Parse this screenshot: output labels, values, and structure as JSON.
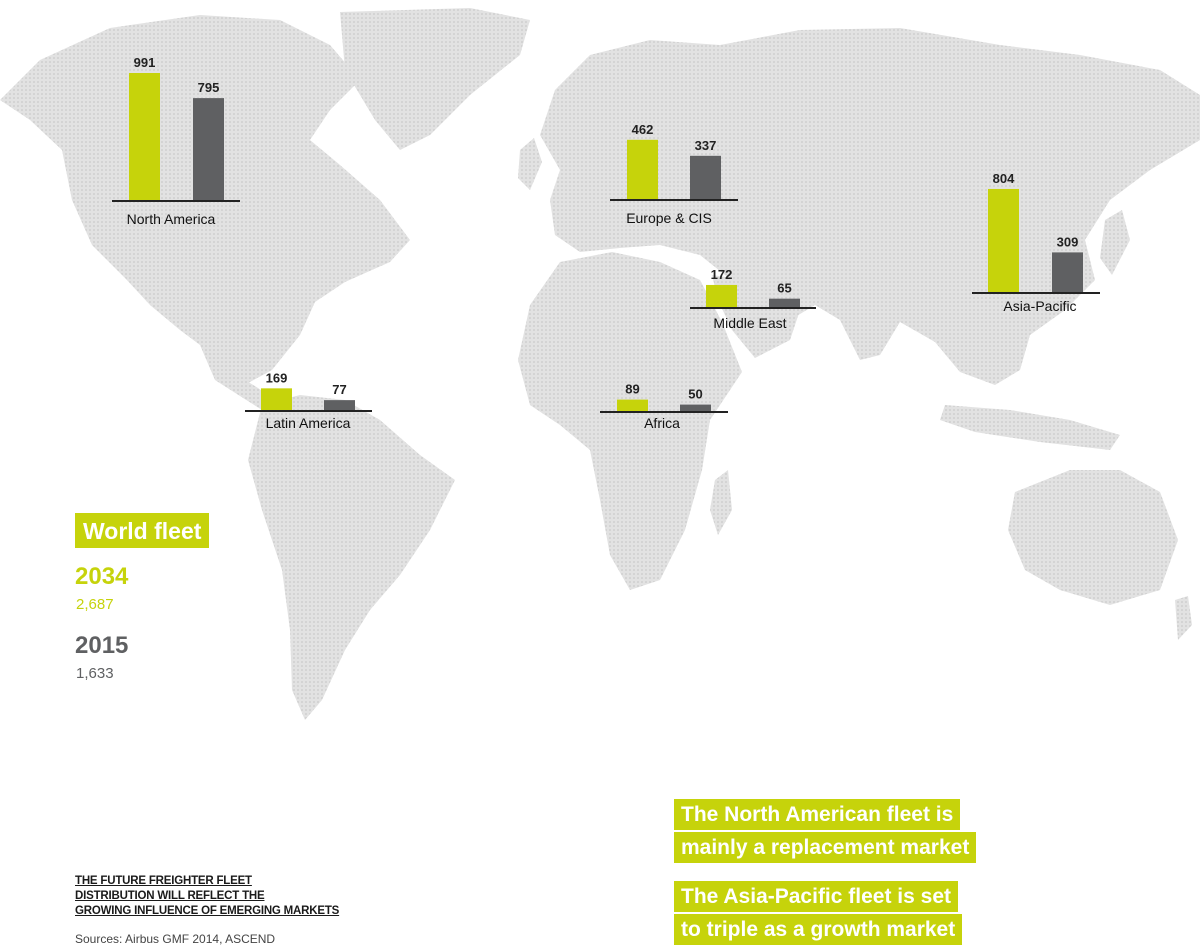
{
  "chart_data": {
    "type": "bar",
    "series": [
      {
        "name": "2034",
        "color": "#c6d30b"
      },
      {
        "name": "2015",
        "color": "#5f6062"
      }
    ],
    "regions": [
      {
        "name": "North America",
        "values": [
          991,
          795
        ]
      },
      {
        "name": "Europe & CIS",
        "values": [
          462,
          337
        ]
      },
      {
        "name": "Asia-Pacific",
        "values": [
          804,
          309
        ]
      },
      {
        "name": "Middle East",
        "values": [
          172,
          65
        ]
      },
      {
        "name": "Latin America",
        "values": [
          169,
          77
        ]
      },
      {
        "name": "Africa",
        "values": [
          89,
          50
        ]
      }
    ],
    "world_fleet": {
      "label": "World fleet",
      "entries": [
        {
          "year": "2034",
          "value": "2,687",
          "color": "#c6d30b"
        },
        {
          "year": "2015",
          "value": "1,633",
          "color": "#5f6062"
        }
      ]
    }
  },
  "notes": [
    {
      "lines": [
        "The North American fleet is",
        "mainly a replacement market"
      ]
    },
    {
      "lines": [
        "The Asia-Pacific fleet is set",
        "to triple as a growth market"
      ]
    }
  ],
  "caption": {
    "lines": [
      "THE FUTURE FREIGHTER FLEET",
      "DISTRIBUTION WILL REFLECT THE",
      "GROWING INFLUENCE OF EMERGING MARKETS"
    ],
    "sources": "Sources: Airbus GMF 2014, ASCEND"
  },
  "colors": {
    "accent": "#c6d30b",
    "dark": "#5f6062",
    "map": "#dcdcdc"
  }
}
